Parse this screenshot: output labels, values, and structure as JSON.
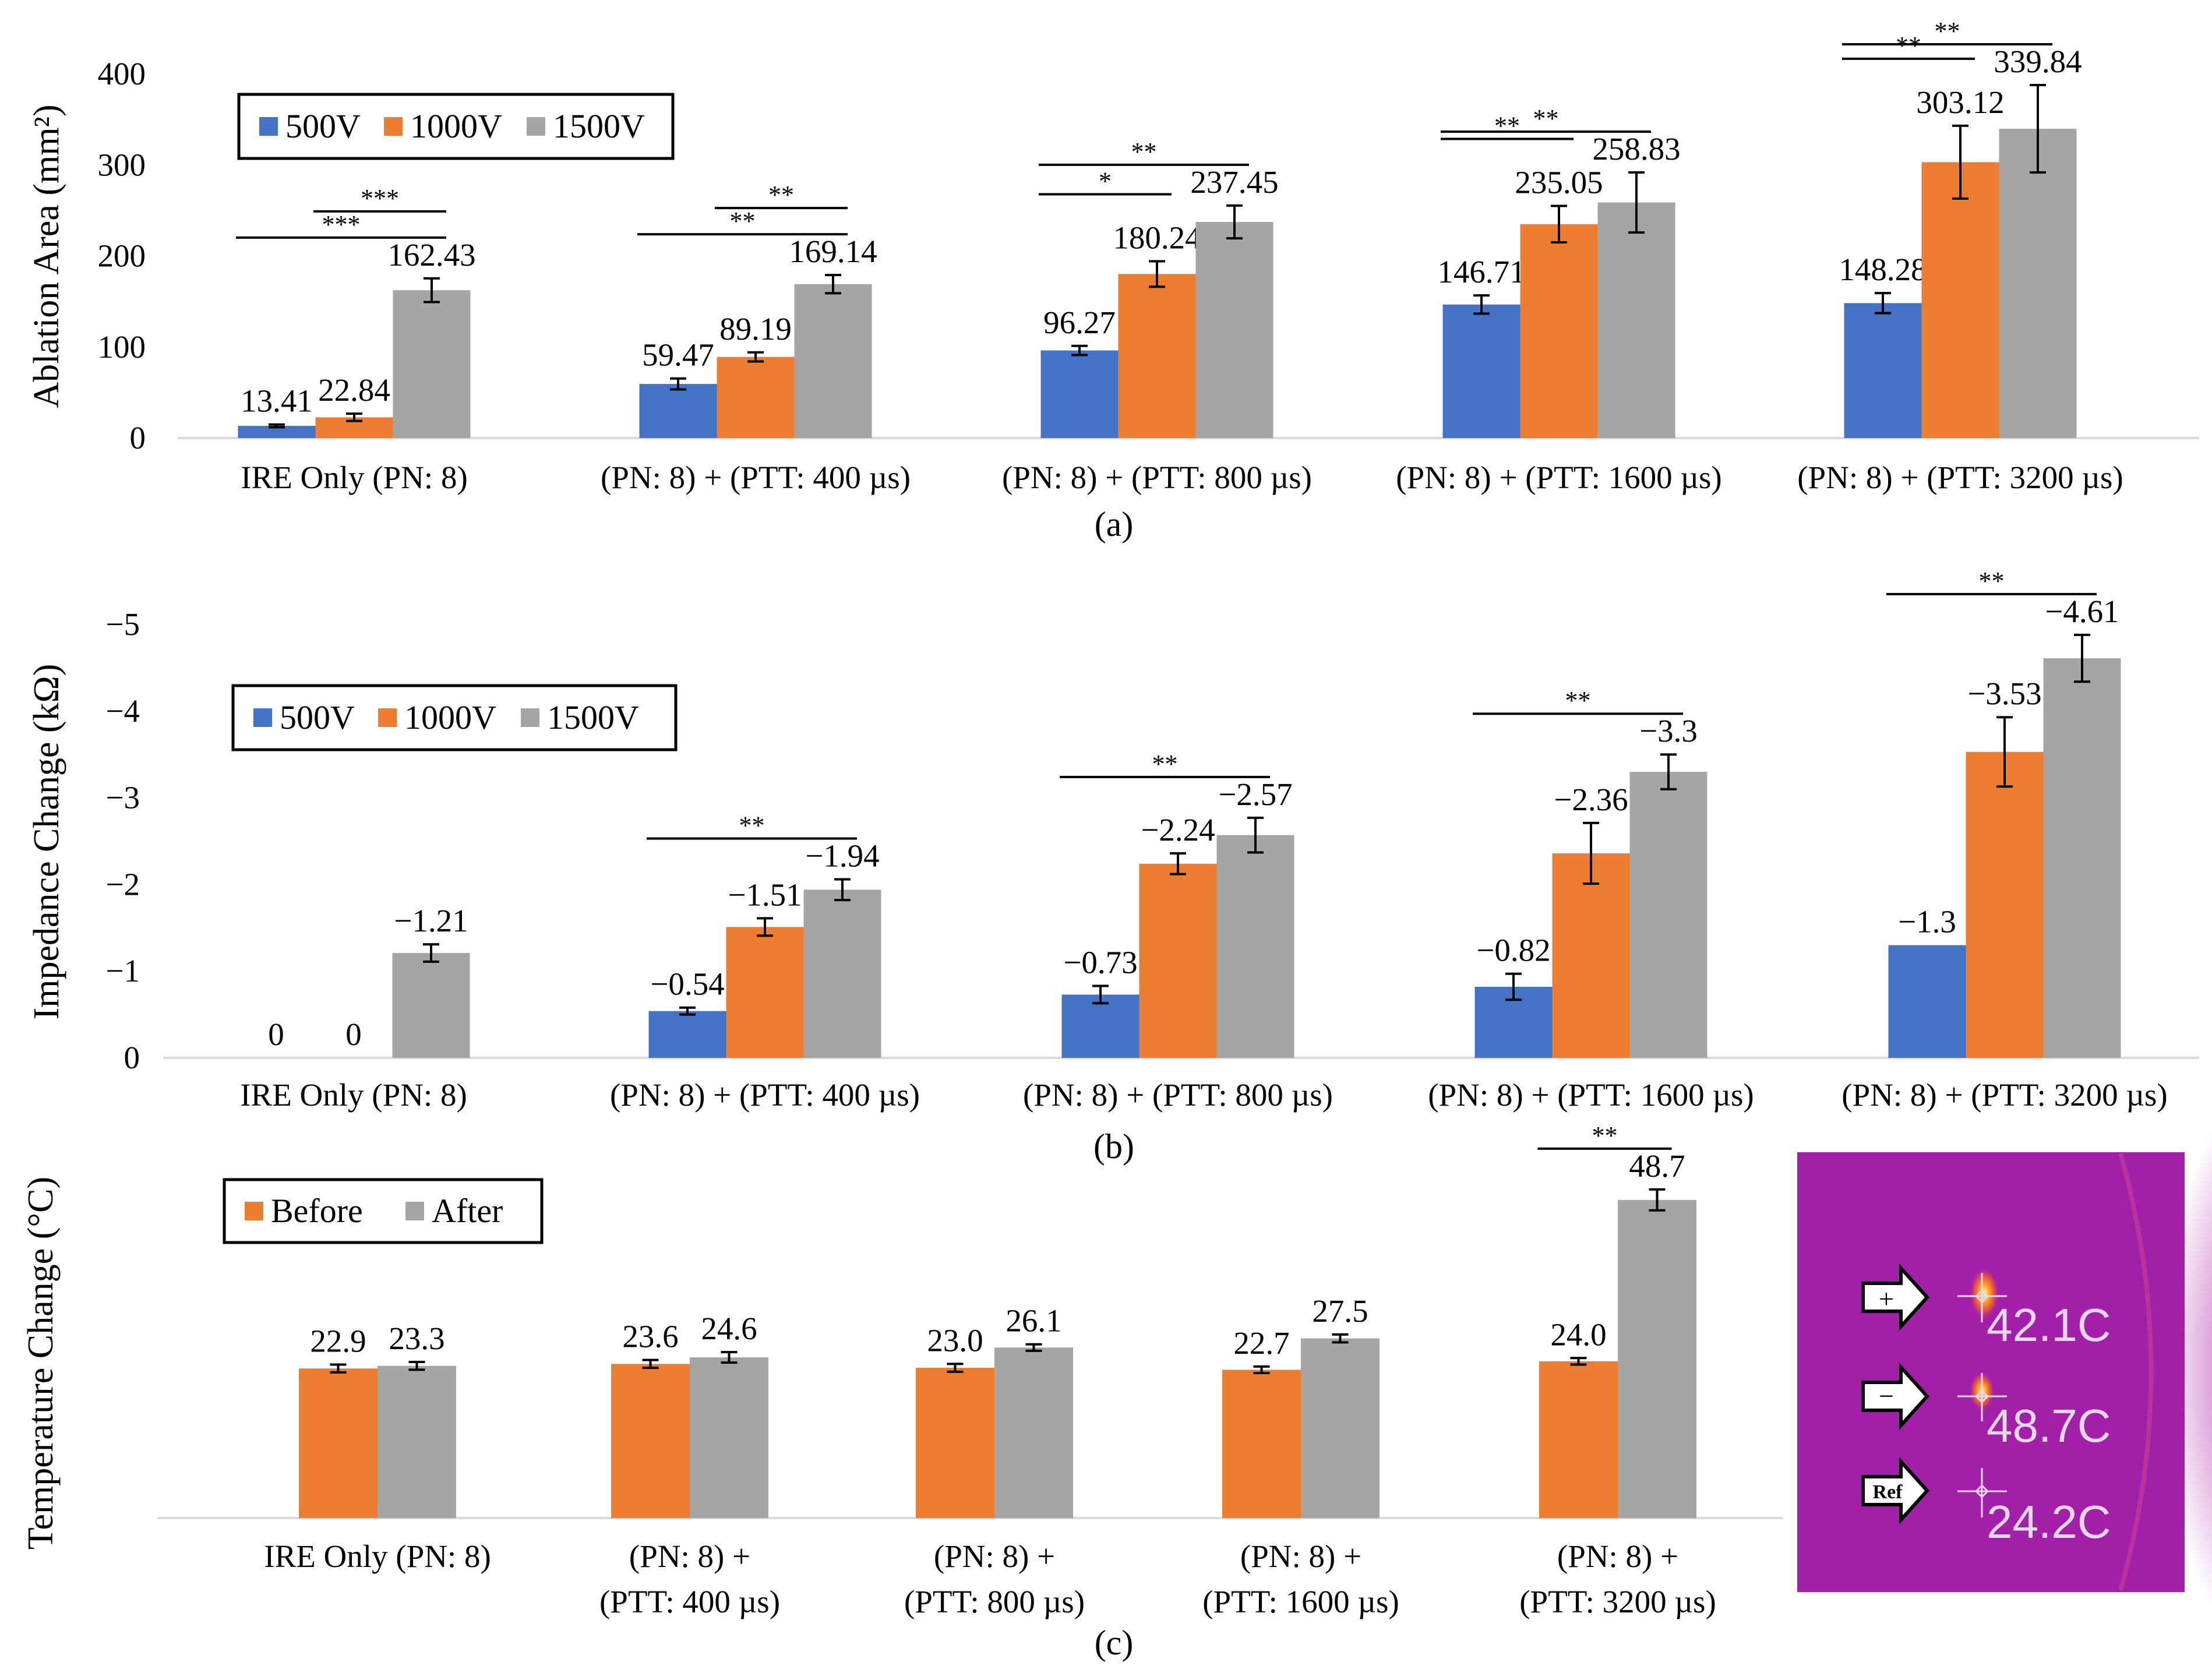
{
  "colors": {
    "v500": "#4472c4",
    "v1000": "#ed7d31",
    "v1500": "#a5a5a5",
    "before": "#ed7d31",
    "after": "#a5a5a5",
    "thermal_bg": "#a21fa8"
  },
  "chart_data": [
    {
      "id": "a",
      "type": "bar",
      "caption": "(a)",
      "ylabel": "Ablation Area (mm²)",
      "ylim": [
        0,
        400
      ],
      "yticks": [
        "0",
        "100",
        "200",
        "300",
        "400"
      ],
      "categories": [
        "IRE Only (PN: 8)",
        "(PN: 8) + (PTT: 400 µs)",
        "(PN: 8) + (PTT: 800 µs)",
        "(PN: 8) + (PTT: 1600 µs)",
        "(PN: 8) + (PTT: 3200 µs)"
      ],
      "legend": [
        "500V",
        "1000V",
        "1500V"
      ],
      "series": [
        {
          "name": "500V",
          "values": [
            13.41,
            59.47,
            96.27,
            146.71,
            148.28
          ],
          "errors": [
            1.5,
            6,
            5,
            10,
            11
          ],
          "labels": [
            "13.41",
            "59.47",
            "96.27",
            "146.71",
            "148.28"
          ]
        },
        {
          "name": "1000V",
          "values": [
            22.84,
            89.19,
            180.24,
            235.05,
            303.12
          ],
          "errors": [
            4,
            5,
            14,
            20,
            40
          ],
          "labels": [
            "22.84",
            "89.19",
            "180.24",
            "235.05",
            "303.12"
          ]
        },
        {
          "name": "1500V",
          "values": [
            162.43,
            169.14,
            237.45,
            258.83,
            339.84
          ],
          "errors": [
            13,
            10,
            18,
            33,
            48
          ],
          "labels": [
            "162.43",
            "169.14",
            "237.45",
            "258.83",
            "339.84"
          ]
        }
      ],
      "significance": [
        {
          "group": 0,
          "from": 0,
          "to": 2,
          "label": "***"
        },
        {
          "group": 0,
          "from": 1,
          "to": 2,
          "label": "***"
        },
        {
          "group": 1,
          "from": 0,
          "to": 2,
          "label": "**"
        },
        {
          "group": 1,
          "from": 1,
          "to": 2,
          "label": "**"
        },
        {
          "group": 2,
          "from": 0,
          "to": 2,
          "label": "**"
        },
        {
          "group": 2,
          "from": 0,
          "to": 1,
          "label": "*"
        },
        {
          "group": 3,
          "from": 0,
          "to": 2,
          "label": "**"
        },
        {
          "group": 3,
          "from": 0,
          "to": 1,
          "label": "**"
        },
        {
          "group": 4,
          "from": 0,
          "to": 2,
          "label": "**"
        },
        {
          "group": 4,
          "from": 0,
          "to": 1,
          "label": "**"
        }
      ]
    },
    {
      "id": "b",
      "type": "bar",
      "caption": "(b)",
      "ylabel": "Impedance Change (kΩ)",
      "ylim": [
        0,
        -5
      ],
      "yticks": [
        "0",
        "−1",
        "−2",
        "−3",
        "−4",
        "−5"
      ],
      "categories": [
        "IRE Only (PN: 8)",
        "(PN: 8) + (PTT: 400 µs)",
        "(PN: 8) + (PTT: 800 µs)",
        "(PN: 8) + (PTT: 1600 µs)",
        "(PN: 8) + (PTT: 3200 µs)"
      ],
      "legend": [
        "500V",
        "1000V",
        "1500V"
      ],
      "series": [
        {
          "name": "500V",
          "values": [
            0,
            -0.54,
            -0.73,
            -0.82,
            -1.3
          ],
          "errors": [
            0,
            0.04,
            0.1,
            0.15,
            0
          ],
          "labels": [
            "0",
            "−0.54",
            "−0.73",
            "−0.82",
            "−1.3"
          ]
        },
        {
          "name": "1000V",
          "values": [
            0,
            -1.51,
            -2.24,
            -2.36,
            -3.53
          ],
          "errors": [
            0,
            0.1,
            0.12,
            0.35,
            0.4
          ],
          "labels": [
            "0",
            "−1.51",
            "−2.24",
            "−2.36",
            "−3.53"
          ]
        },
        {
          "name": "1500V",
          "values": [
            -1.21,
            -1.94,
            -2.57,
            -3.3,
            -4.61
          ],
          "errors": [
            0.1,
            0.12,
            0.2,
            0.2,
            0.27
          ],
          "labels": [
            "−1.21",
            "−1.94",
            "−2.57",
            "−3.3",
            "−4.61"
          ]
        }
      ],
      "significance": [
        {
          "group": 1,
          "from": 0,
          "to": 2,
          "label": "**"
        },
        {
          "group": 2,
          "from": 0,
          "to": 2,
          "label": "**"
        },
        {
          "group": 3,
          "from": 0,
          "to": 2,
          "label": "**"
        },
        {
          "group": 4,
          "from": 0,
          "to": 2,
          "label": "**"
        }
      ]
    },
    {
      "id": "c",
      "type": "bar",
      "caption": "(c)",
      "ylabel": "Temperature Change (°C)",
      "ylim": [
        0,
        56
      ],
      "categories": [
        [
          "IRE Only (PN: 8)"
        ],
        [
          "(PN: 8) +",
          "(PTT: 400 µs)"
        ],
        [
          "(PN: 8) +",
          "(PTT: 800 µs)"
        ],
        [
          "(PN: 8) +",
          "(PTT: 1600 µs)"
        ],
        [
          "(PN: 8) +",
          "(PTT: 3200 µs)"
        ]
      ],
      "legend": [
        "Before",
        "After"
      ],
      "series": [
        {
          "name": "Before",
          "values": [
            22.9,
            23.6,
            23.0,
            22.7,
            24.0
          ],
          "errors": [
            0.6,
            0.6,
            0.6,
            0.5,
            0.5
          ],
          "labels": [
            "22.9",
            "23.6",
            "23.0",
            "22.7",
            "24.0"
          ]
        },
        {
          "name": "After",
          "values": [
            23.3,
            24.6,
            26.1,
            27.5,
            48.7
          ],
          "errors": [
            0.6,
            0.8,
            0.5,
            0.6,
            1.6
          ],
          "labels": [
            "23.3",
            "24.6",
            "26.1",
            "27.5",
            "48.7"
          ]
        }
      ],
      "significance": [
        {
          "group": 4,
          "from": 0,
          "to": 1,
          "label": "**"
        }
      ]
    }
  ],
  "thermal_image": {
    "markers": [
      "+",
      "−",
      "Ref"
    ],
    "readings": [
      "42.1C",
      "48.7C",
      "24.2C"
    ]
  }
}
